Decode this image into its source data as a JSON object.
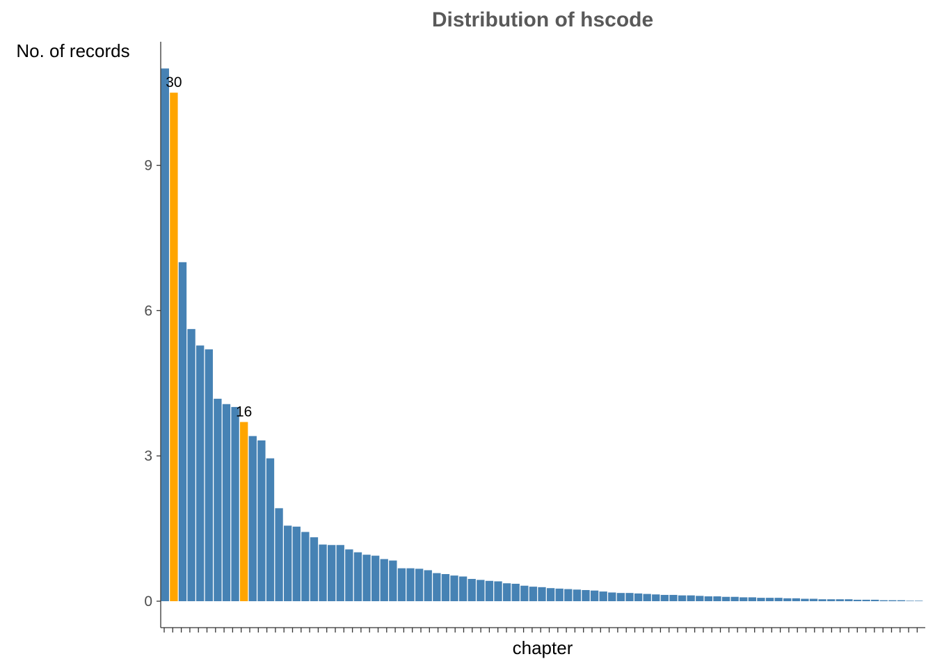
{
  "chart_data": {
    "type": "bar",
    "title": "Distribution of hscode",
    "xlabel": "chapter",
    "ylabel": "No. of records",
    "ylim": [
      0,
      11.6
    ],
    "yticks": [
      0,
      3,
      6,
      9
    ],
    "grid": false,
    "legend": "none",
    "category_count": 87,
    "values": [
      11.0,
      10.5,
      7.0,
      5.62,
      5.28,
      5.2,
      4.18,
      4.07,
      4.01,
      3.7,
      3.41,
      3.32,
      2.95,
      1.92,
      1.56,
      1.54,
      1.43,
      1.32,
      1.17,
      1.16,
      1.16,
      1.07,
      1.01,
      0.96,
      0.94,
      0.87,
      0.84,
      0.68,
      0.68,
      0.67,
      0.64,
      0.58,
      0.56,
      0.53,
      0.51,
      0.46,
      0.44,
      0.42,
      0.41,
      0.37,
      0.36,
      0.32,
      0.3,
      0.29,
      0.27,
      0.26,
      0.25,
      0.24,
      0.23,
      0.22,
      0.2,
      0.18,
      0.17,
      0.17,
      0.16,
      0.15,
      0.14,
      0.13,
      0.13,
      0.12,
      0.12,
      0.11,
      0.1,
      0.1,
      0.09,
      0.09,
      0.08,
      0.08,
      0.07,
      0.07,
      0.07,
      0.06,
      0.06,
      0.05,
      0.05,
      0.04,
      0.04,
      0.04,
      0.04,
      0.03,
      0.03,
      0.03,
      0.02,
      0.02,
      0.02,
      0.01,
      0.01
    ],
    "highlighted": [
      {
        "index": 1,
        "label": "30"
      },
      {
        "index": 9,
        "label": "16"
      }
    ],
    "colors": {
      "bar": "#4682b4",
      "highlight": "#ffa500"
    }
  }
}
